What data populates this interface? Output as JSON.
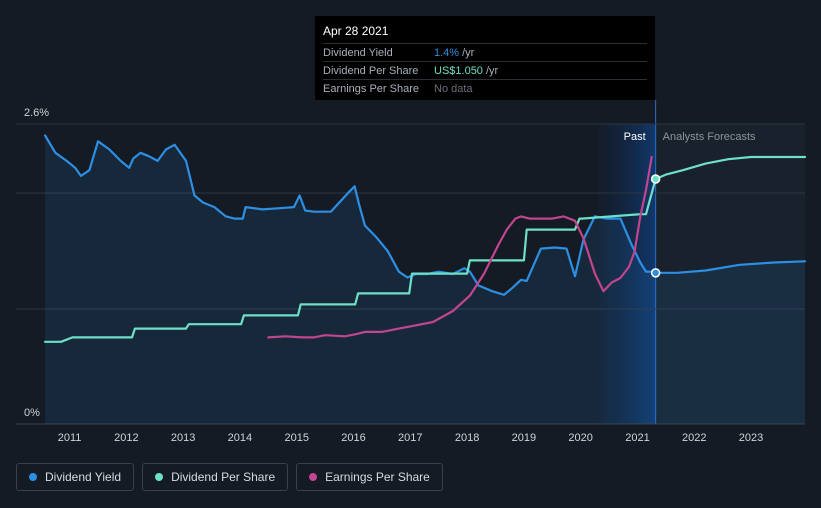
{
  "tooltip": {
    "date": "Apr 28 2021",
    "rows": [
      {
        "label": "Dividend Yield",
        "value": "1.4%",
        "unit": "/yr",
        "color": "#2d8fe3"
      },
      {
        "label": "Dividend Per Share",
        "value": "US$1.050",
        "unit": "/yr",
        "color": "#6fe0c8"
      },
      {
        "label": "Earnings Per Share",
        "value": "No data",
        "unit": "",
        "color": "#6b7179"
      }
    ]
  },
  "regions": {
    "past_label": "Past",
    "forecast_label": "Analysts Forecasts"
  },
  "legend": [
    {
      "label": "Dividend Yield",
      "color": "#2d8fe3"
    },
    {
      "label": "Dividend Per Share",
      "color": "#6fe0c8"
    },
    {
      "label": "Earnings Per Share",
      "color": "#c2458f"
    }
  ],
  "chart_data": {
    "type": "line",
    "y_tick_labels": [
      "2.6%",
      "0%"
    ],
    "ylim": [
      0,
      2.6
    ],
    "x_tick_labels": [
      "2011",
      "2012",
      "2013",
      "2014",
      "2015",
      "2016",
      "2017",
      "2018",
      "2019",
      "2020",
      "2021",
      "2022",
      "2023"
    ],
    "xlim": [
      2010.55,
      2023.95
    ],
    "past_end": 2021.32,
    "highlight_start": 2020.32,
    "grid": true,
    "series": [
      {
        "name": "Dividend Yield",
        "unit": "%",
        "color": "#2d8fe3",
        "area": true,
        "x": [
          2010.57,
          2010.75,
          2010.95,
          2011.1,
          2011.2,
          2011.35,
          2011.5,
          2011.7,
          2011.9,
          2012.05,
          2012.12,
          2012.25,
          2012.4,
          2012.55,
          2012.7,
          2012.85,
          2013.05,
          2013.2,
          2013.35,
          2013.55,
          2013.75,
          2013.9,
          2014.05,
          2014.1,
          2014.4,
          2014.7,
          2014.95,
          2015.05,
          2015.15,
          2015.3,
          2015.6,
          2015.75,
          2015.9,
          2016.02,
          2016.1,
          2016.2,
          2016.4,
          2016.6,
          2016.8,
          2016.95,
          2017.1,
          2017.3,
          2017.5,
          2017.75,
          2017.95,
          2018.05,
          2018.2,
          2018.45,
          2018.65,
          2018.8,
          2018.95,
          2019.05,
          2019.3,
          2019.55,
          2019.75,
          2019.9,
          2020.05,
          2020.25,
          2020.45,
          2020.7,
          2020.9,
          2021.05,
          2021.15,
          2021.25,
          2021.32,
          2021.7,
          2022.2,
          2022.8,
          2023.4,
          2023.95
        ],
        "y": [
          2.5,
          2.35,
          2.28,
          2.22,
          2.15,
          2.2,
          2.45,
          2.38,
          2.28,
          2.22,
          2.3,
          2.35,
          2.32,
          2.28,
          2.38,
          2.42,
          2.28,
          1.98,
          1.92,
          1.88,
          1.8,
          1.78,
          1.78,
          1.88,
          1.86,
          1.87,
          1.88,
          1.98,
          1.85,
          1.84,
          1.84,
          1.92,
          2.0,
          2.06,
          1.9,
          1.72,
          1.62,
          1.5,
          1.32,
          1.27,
          1.3,
          1.3,
          1.32,
          1.3,
          1.35,
          1.32,
          1.2,
          1.15,
          1.12,
          1.18,
          1.25,
          1.24,
          1.52,
          1.53,
          1.52,
          1.28,
          1.6,
          1.8,
          1.78,
          1.78,
          1.55,
          1.4,
          1.32,
          1.32,
          1.31,
          1.31,
          1.33,
          1.38,
          1.4,
          1.41
        ]
      },
      {
        "name": "Dividend Per Share",
        "unit": "US$",
        "color": "#6fe0c8",
        "area": false,
        "x": [
          2010.57,
          2010.85,
          2011.05,
          2012.1,
          2012.15,
          2013.05,
          2013.1,
          2014.02,
          2014.07,
          2015.02,
          2015.07,
          2016.03,
          2016.08,
          2016.98,
          2017.03,
          2018.0,
          2018.05,
          2019.0,
          2019.05,
          2019.9,
          2019.98,
          2020.02,
          2021.05,
          2021.15,
          2021.32,
          2021.5,
          2021.8,
          2022.2,
          2022.6,
          2023.0,
          2023.95
        ],
        "y": [
          0.31,
          0.31,
          0.33,
          0.33,
          0.37,
          0.37,
          0.39,
          0.39,
          0.43,
          0.43,
          0.48,
          0.48,
          0.53,
          0.53,
          0.62,
          0.62,
          0.68,
          0.68,
          0.82,
          0.82,
          0.87,
          0.87,
          0.89,
          0.89,
          1.05,
          1.07,
          1.09,
          1.12,
          1.14,
          1.15,
          1.15
        ]
      },
      {
        "name": "Earnings Per Share",
        "unit": "US$",
        "color": "#c2458f",
        "area": false,
        "x": [
          2014.5,
          2014.8,
          2015.1,
          2015.3,
          2015.5,
          2015.85,
          2016.05,
          2016.2,
          2016.5,
          2016.8,
          2017.0,
          2017.4,
          2017.75,
          2018.05,
          2018.3,
          2018.55,
          2018.7,
          2018.85,
          2018.95,
          2019.1,
          2019.5,
          2019.7,
          2019.9,
          2020.05,
          2020.25,
          2020.4,
          2020.55,
          2020.7,
          2020.85,
          2020.95,
          2021.05,
          2021.15,
          2021.25
        ],
        "y": [
          0.33,
          0.335,
          0.33,
          0.33,
          0.34,
          0.335,
          0.345,
          0.355,
          0.355,
          0.37,
          0.38,
          0.4,
          0.45,
          0.52,
          0.62,
          0.75,
          0.82,
          0.87,
          0.88,
          0.87,
          0.87,
          0.88,
          0.86,
          0.78,
          0.62,
          0.54,
          0.58,
          0.6,
          0.65,
          0.72,
          0.88,
          1.0,
          1.15
        ]
      }
    ]
  }
}
